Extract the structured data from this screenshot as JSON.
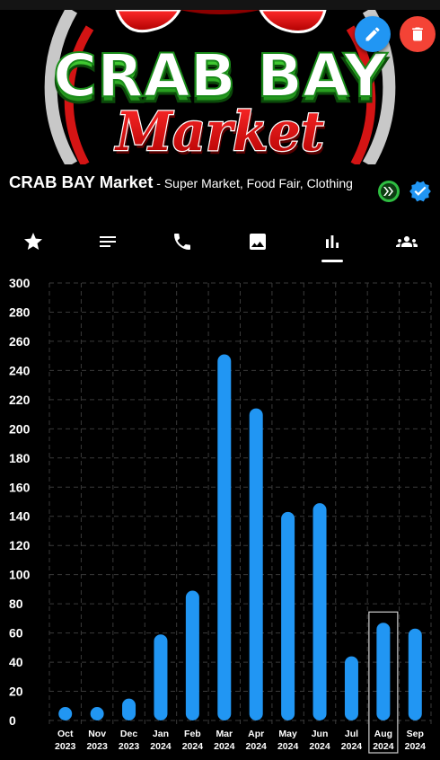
{
  "banner": {
    "logo_line1": "CRAB BAY",
    "logo_line2": "Market"
  },
  "actions": {
    "edit_icon": "pencil-icon",
    "delete_icon": "trash-icon",
    "edit_color": "#2196f3",
    "delete_color": "#f44336"
  },
  "store": {
    "name": "CRAB BAY Market",
    "categories": " - Super Market, Food Fair, Clothing"
  },
  "badges": {
    "hive_color": "#2ebd41",
    "verified_color": "#2196f3"
  },
  "tabs": [
    {
      "icon": "star-icon"
    },
    {
      "icon": "description-icon"
    },
    {
      "icon": "phone-icon"
    },
    {
      "icon": "image-icon"
    },
    {
      "icon": "bar-chart-icon",
      "active": true
    },
    {
      "icon": "group-icon"
    }
  ],
  "chart_data": {
    "type": "bar",
    "categories": [
      "Oct 2023",
      "Nov 2023",
      "Dec 2023",
      "Jan 2024",
      "Feb 2024",
      "Mar 2024",
      "Apr 2024",
      "May 2024",
      "Jun 2024",
      "Jul 2024",
      "Aug 2024",
      "Sep 2024"
    ],
    "tick_labels": [
      [
        "Oct",
        "2023"
      ],
      [
        "Nov",
        "2023"
      ],
      [
        "Dec",
        "2023"
      ],
      [
        "Jan",
        "2024"
      ],
      [
        "Feb",
        "2024"
      ],
      [
        "Mar",
        "2024"
      ],
      [
        "Apr",
        "2024"
      ],
      [
        "May",
        "2024"
      ],
      [
        "Jun",
        "2024"
      ],
      [
        "Jul",
        "2024"
      ],
      [
        "Aug",
        "2024"
      ],
      [
        "Sep",
        "2024"
      ]
    ],
    "values": [
      8,
      8,
      15,
      59,
      89,
      251,
      214,
      143,
      149,
      44,
      67,
      63
    ],
    "ylim": [
      0,
      300
    ],
    "yticks": [
      0,
      20,
      40,
      60,
      80,
      100,
      120,
      140,
      160,
      180,
      200,
      220,
      240,
      260,
      280,
      300
    ],
    "grid": true,
    "highlighted_category": "Aug 2024",
    "bar_color": "#2196f3",
    "title": "",
    "xlabel": "",
    "ylabel": ""
  }
}
